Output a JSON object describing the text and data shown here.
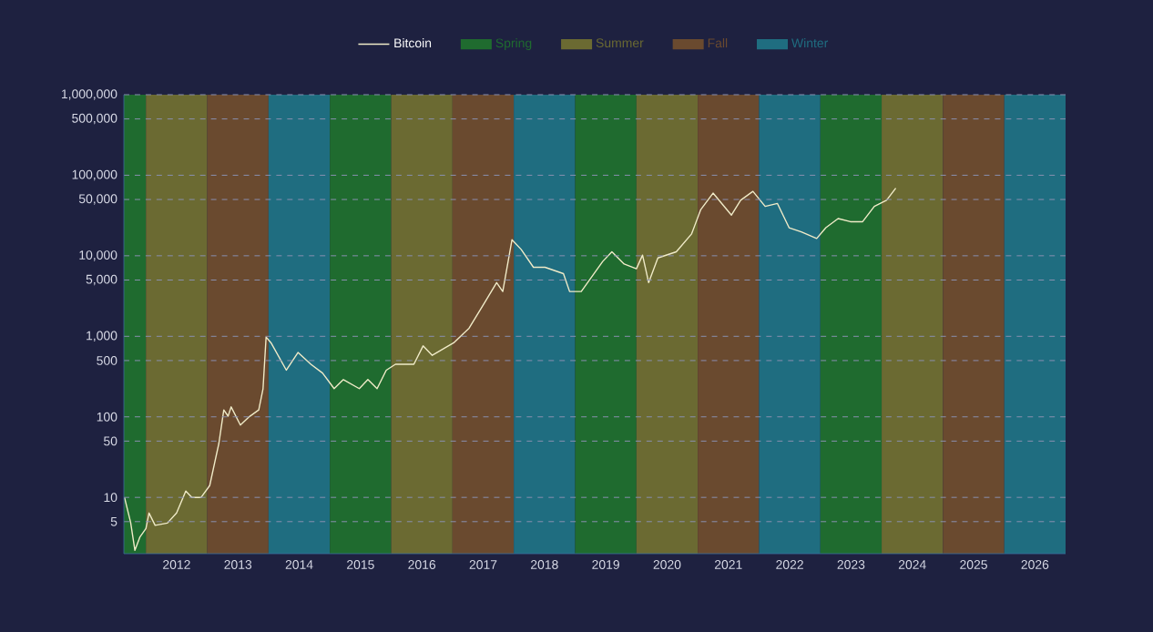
{
  "chart_data": {
    "type": "line",
    "log": "y",
    "grid": "y",
    "legend": "top",
    "xlim": [
      2011.64,
      2027.0
    ],
    "ylim": [
      2,
      1000000
    ],
    "xticks": [
      {
        "value": 2012.5,
        "label": "2012"
      },
      {
        "value": 2013.5,
        "label": "2013"
      },
      {
        "value": 2014.5,
        "label": "2014"
      },
      {
        "value": 2015.5,
        "label": "2015"
      },
      {
        "value": 2016.5,
        "label": "2016"
      },
      {
        "value": 2017.5,
        "label": "2017"
      },
      {
        "value": 2018.5,
        "label": "2018"
      },
      {
        "value": 2019.5,
        "label": "2019"
      },
      {
        "value": 2020.5,
        "label": "2020"
      },
      {
        "value": 2021.5,
        "label": "2021"
      },
      {
        "value": 2022.5,
        "label": "2022"
      },
      {
        "value": 2023.5,
        "label": "2023"
      },
      {
        "value": 2024.5,
        "label": "2024"
      },
      {
        "value": 2025.5,
        "label": "2025"
      },
      {
        "value": 2026.5,
        "label": "2026"
      }
    ],
    "yticks": [
      5,
      10,
      50,
      100,
      {
        "value": 500,
        "label": "500"
      },
      {
        "value": 1000,
        "label": "1,000"
      },
      {
        "value": 5000,
        "label": "5,000"
      },
      {
        "value": 10000,
        "label": "10,000"
      },
      {
        "value": 50000,
        "label": "50,000"
      },
      {
        "value": 100000,
        "label": "100,000"
      },
      {
        "value": 500000,
        "label": "500,000"
      },
      {
        "value": 1000000,
        "label": "1,000,000"
      }
    ],
    "series": [
      {
        "name": "Bitcoin",
        "color": "#f0ebc8",
        "x": [
          2011.65,
          2011.75,
          2011.82,
          2011.9,
          2012.0,
          2012.05,
          2012.15,
          2012.35,
          2012.5,
          2012.65,
          2012.75,
          2012.9,
          2013.04,
          2013.19,
          2013.27,
          2013.34,
          2013.39,
          2013.54,
          2013.69,
          2013.84,
          2013.91,
          2013.96,
          2014.04,
          2014.29,
          2014.48,
          2014.69,
          2014.88,
          2015.07,
          2015.22,
          2015.48,
          2015.62,
          2015.77,
          2015.92,
          2016.07,
          2016.37,
          2016.52,
          2016.67,
          2017.02,
          2017.27,
          2017.51,
          2017.72,
          2017.82,
          2017.97,
          2018.12,
          2018.32,
          2018.51,
          2018.81,
          2018.91,
          2019.1,
          2019.45,
          2019.6,
          2019.8,
          2020.0,
          2020.1,
          2020.2,
          2020.35,
          2020.65,
          2020.9,
          2021.05,
          2021.25,
          2021.55,
          2021.7,
          2021.9,
          2022.1,
          2022.3,
          2022.49,
          2022.69,
          2022.94,
          2023.09,
          2023.29,
          2023.49,
          2023.69,
          2023.88,
          2024.08,
          2024.23
        ],
        "values": [
          10,
          4.9,
          2.2,
          3.2,
          4.1,
          6.4,
          4.5,
          4.8,
          6.4,
          12,
          10,
          10,
          14,
          47,
          122,
          102,
          133,
          79,
          101,
          122,
          224,
          980,
          830,
          380,
          630,
          450,
          350,
          224,
          290,
          224,
          290,
          224,
          380,
          450,
          450,
          760,
          580,
          830,
          1260,
          2520,
          4650,
          3600,
          15800,
          12000,
          7200,
          7200,
          6000,
          3600,
          3600,
          8500,
          11200,
          7900,
          6900,
          10200,
          4650,
          9400,
          11200,
          18700,
          37500,
          60000,
          32000,
          49000,
          63000,
          41000,
          44600,
          22300,
          19800,
          16400,
          22300,
          29000,
          26500,
          26500,
          41000,
          49000,
          69000
        ]
      }
    ],
    "bands": [
      {
        "axis": "x",
        "from": 2011.64,
        "to": 2012,
        "label": "Spring",
        "color": "#1f6b2f"
      },
      {
        "axis": "x",
        "from": 2012,
        "to": 2013,
        "label": "Summer",
        "color": "#6b6a32"
      },
      {
        "axis": "x",
        "from": 2013,
        "to": 2014,
        "label": "Fall",
        "color": "#6a4a2f"
      },
      {
        "axis": "x",
        "from": 2014,
        "to": 2015,
        "label": "Winter",
        "color": "#1f6d80"
      },
      {
        "axis": "x",
        "from": 2015,
        "to": 2016,
        "color": "#1f6b2f"
      },
      {
        "axis": "x",
        "from": 2016,
        "to": 2017,
        "color": "#6b6a32"
      },
      {
        "axis": "x",
        "from": 2017,
        "to": 2018,
        "color": "#6a4a2f"
      },
      {
        "axis": "x",
        "from": 2018,
        "to": 2019,
        "color": "#1f6d80"
      },
      {
        "axis": "x",
        "from": 2019,
        "to": 2020,
        "color": "#1f6b2f"
      },
      {
        "axis": "x",
        "from": 2020,
        "to": 2021,
        "color": "#6b6a32"
      },
      {
        "axis": "x",
        "from": 2021,
        "to": 2022,
        "color": "#6a4a2f"
      },
      {
        "axis": "x",
        "from": 2022,
        "to": 2023,
        "color": "#1f6d80"
      },
      {
        "axis": "x",
        "from": 2023,
        "to": 2024,
        "color": "#1f6b2f"
      },
      {
        "axis": "x",
        "from": 2024,
        "to": 2025,
        "color": "#6b6a32"
      },
      {
        "axis": "x",
        "from": 2025,
        "to": 2026,
        "color": "#6a4a2f"
      },
      {
        "axis": "x",
        "from": 2026,
        "to": 2027,
        "color": "#1f6d80"
      }
    ]
  }
}
